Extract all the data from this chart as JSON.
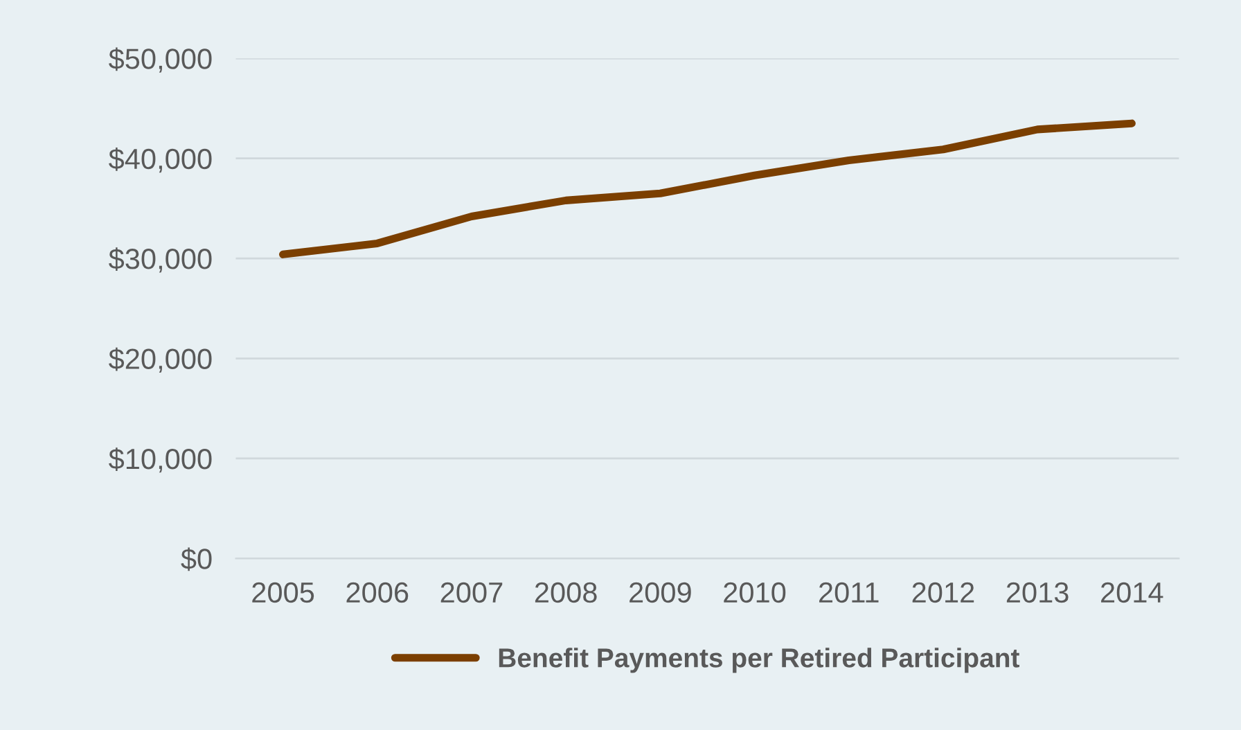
{
  "chart_data": {
    "type": "line",
    "categories": [
      "2005",
      "2006",
      "2007",
      "2008",
      "2009",
      "2010",
      "2011",
      "2012",
      "2013",
      "2014"
    ],
    "series": [
      {
        "name": "Benefit Payments per Retired Participant",
        "color": "#7b3f00",
        "values": [
          30400,
          31500,
          34200,
          35800,
          36500,
          38300,
          39800,
          40900,
          42900,
          43500
        ]
      }
    ],
    "ylim": [
      0,
      50000
    ],
    "yticks": [
      {
        "value": 0,
        "label": "$0"
      },
      {
        "value": 10000,
        "label": "$10,000"
      },
      {
        "value": 20000,
        "label": "$20,000"
      },
      {
        "value": 30000,
        "label": "$30,000"
      },
      {
        "value": 40000,
        "label": "$40,000"
      },
      {
        "value": 50000,
        "label": "$50,000"
      }
    ],
    "grid": "y",
    "legend": "bottom",
    "marker": "none",
    "line_style": "solid"
  }
}
